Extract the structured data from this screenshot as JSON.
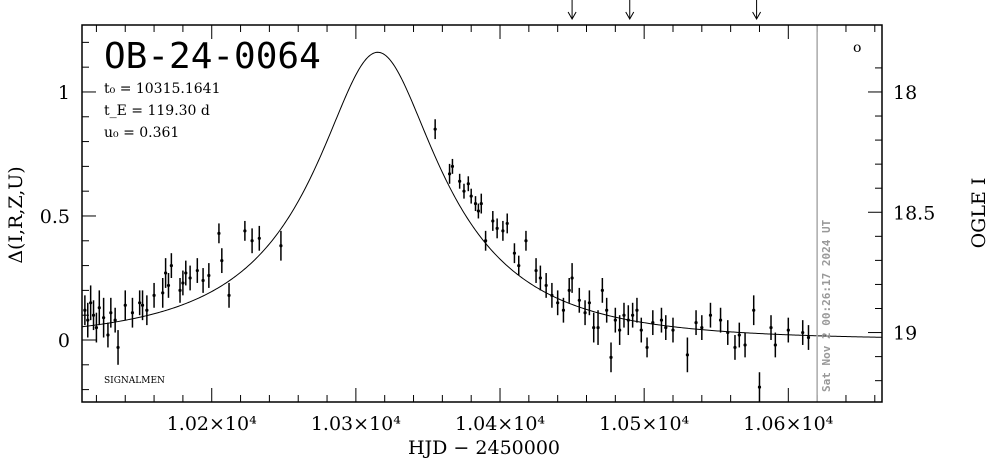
{
  "chart_data": {
    "type": "scatter",
    "title": "OB-24-0064",
    "params": [
      "t₀ = 10315.1641",
      "t_E = 119.30 d",
      "u₀ = 0.361"
    ],
    "xlabel": "HJD − 2450000",
    "ylabel": "Δ(I,R,Z,U)",
    "ylabel_right": "OGLE I",
    "xlim": [
      10110,
      10665
    ],
    "ylim": [
      -0.25,
      1.27
    ],
    "x_ticks": [
      10200,
      10300,
      10400,
      10500,
      10600
    ],
    "x_tick_labels": [
      "1.02×10⁴",
      "1.03×10⁴",
      "1.04×10⁴",
      "1.05×10⁴",
      "1.06×10⁴"
    ],
    "y_ticks": [
      0,
      0.5,
      1
    ],
    "y_tick_labels": [
      "0",
      "0.5",
      "1"
    ],
    "y_right_ticks": [
      18,
      18.5,
      19
    ],
    "y_right_tick_labels": [
      "18",
      "18.5",
      "19"
    ],
    "y_right_to_left": {
      "18": 1.0,
      "18.5": 0.5,
      "19": 0.03
    },
    "model": {
      "t0": 10315.1641,
      "tE": 119.3,
      "u0": 0.361,
      "baseline": 0.0,
      "scale": 0.4
    },
    "now_marker": {
      "x": 10620,
      "label": "Sat Nov  2 00:26:17 2024 UT"
    },
    "top_arrows_x": [
      10450,
      10490,
      10578
    ],
    "footer_label": "SIGNALMEN",
    "corner_mark": "o",
    "points": [
      {
        "x": 10112,
        "y": 0.12,
        "e": 0.06
      },
      {
        "x": 10114,
        "y": 0.08,
        "e": 0.07
      },
      {
        "x": 10116,
        "y": 0.15,
        "e": 0.07
      },
      {
        "x": 10118,
        "y": 0.1,
        "e": 0.06
      },
      {
        "x": 10120,
        "y": 0.05,
        "e": 0.06
      },
      {
        "x": 10122,
        "y": 0.13,
        "e": 0.07
      },
      {
        "x": 10125,
        "y": 0.09,
        "e": 0.08
      },
      {
        "x": 10128,
        "y": 0.02,
        "e": 0.05
      },
      {
        "x": 10130,
        "y": 0.11,
        "e": 0.06
      },
      {
        "x": 10133,
        "y": 0.08,
        "e": 0.05
      },
      {
        "x": 10135,
        "y": -0.03,
        "e": 0.07
      },
      {
        "x": 10140,
        "y": 0.14,
        "e": 0.06
      },
      {
        "x": 10145,
        "y": 0.11,
        "e": 0.06
      },
      {
        "x": 10150,
        "y": 0.15,
        "e": 0.05
      },
      {
        "x": 10152,
        "y": 0.14,
        "e": 0.06
      },
      {
        "x": 10155,
        "y": 0.12,
        "e": 0.06
      },
      {
        "x": 10160,
        "y": 0.18,
        "e": 0.05
      },
      {
        "x": 10166,
        "y": 0.19,
        "e": 0.06
      },
      {
        "x": 10168,
        "y": 0.27,
        "e": 0.06
      },
      {
        "x": 10170,
        "y": 0.22,
        "e": 0.05
      },
      {
        "x": 10172,
        "y": 0.3,
        "e": 0.05
      },
      {
        "x": 10178,
        "y": 0.2,
        "e": 0.05
      },
      {
        "x": 10180,
        "y": 0.23,
        "e": 0.05
      },
      {
        "x": 10182,
        "y": 0.27,
        "e": 0.05
      },
      {
        "x": 10185,
        "y": 0.25,
        "e": 0.05
      },
      {
        "x": 10190,
        "y": 0.28,
        "e": 0.05
      },
      {
        "x": 10194,
        "y": 0.24,
        "e": 0.05
      },
      {
        "x": 10198,
        "y": 0.26,
        "e": 0.05
      },
      {
        "x": 10205,
        "y": 0.43,
        "e": 0.04
      },
      {
        "x": 10207,
        "y": 0.32,
        "e": 0.05
      },
      {
        "x": 10212,
        "y": 0.18,
        "e": 0.05
      },
      {
        "x": 10223,
        "y": 0.44,
        "e": 0.04
      },
      {
        "x": 10228,
        "y": 0.4,
        "e": 0.05
      },
      {
        "x": 10233,
        "y": 0.41,
        "e": 0.05
      },
      {
        "x": 10248,
        "y": 0.38,
        "e": 0.06
      },
      {
        "x": 10355,
        "y": 0.85,
        "e": 0.04
      },
      {
        "x": 10365,
        "y": 0.67,
        "e": 0.04
      },
      {
        "x": 10367,
        "y": 0.7,
        "e": 0.03
      },
      {
        "x": 10372,
        "y": 0.64,
        "e": 0.03
      },
      {
        "x": 10375,
        "y": 0.6,
        "e": 0.03
      },
      {
        "x": 10378,
        "y": 0.63,
        "e": 0.03
      },
      {
        "x": 10380,
        "y": 0.58,
        "e": 0.03
      },
      {
        "x": 10383,
        "y": 0.55,
        "e": 0.03
      },
      {
        "x": 10385,
        "y": 0.52,
        "e": 0.03
      },
      {
        "x": 10387,
        "y": 0.55,
        "e": 0.04
      },
      {
        "x": 10390,
        "y": 0.4,
        "e": 0.04
      },
      {
        "x": 10395,
        "y": 0.48,
        "e": 0.04
      },
      {
        "x": 10398,
        "y": 0.45,
        "e": 0.04
      },
      {
        "x": 10402,
        "y": 0.44,
        "e": 0.04
      },
      {
        "x": 10405,
        "y": 0.47,
        "e": 0.04
      },
      {
        "x": 10410,
        "y": 0.35,
        "e": 0.04
      },
      {
        "x": 10413,
        "y": 0.3,
        "e": 0.04
      },
      {
        "x": 10418,
        "y": 0.4,
        "e": 0.04
      },
      {
        "x": 10425,
        "y": 0.28,
        "e": 0.05
      },
      {
        "x": 10428,
        "y": 0.25,
        "e": 0.05
      },
      {
        "x": 10432,
        "y": 0.22,
        "e": 0.05
      },
      {
        "x": 10436,
        "y": 0.18,
        "e": 0.05
      },
      {
        "x": 10440,
        "y": 0.15,
        "e": 0.05
      },
      {
        "x": 10444,
        "y": 0.12,
        "e": 0.05
      },
      {
        "x": 10448,
        "y": 0.2,
        "e": 0.05
      },
      {
        "x": 10450,
        "y": 0.25,
        "e": 0.06
      },
      {
        "x": 10455,
        "y": 0.16,
        "e": 0.05
      },
      {
        "x": 10459,
        "y": 0.11,
        "e": 0.05
      },
      {
        "x": 10462,
        "y": 0.15,
        "e": 0.05
      },
      {
        "x": 10465,
        "y": 0.05,
        "e": 0.06
      },
      {
        "x": 10468,
        "y": 0.05,
        "e": 0.07
      },
      {
        "x": 10471,
        "y": 0.2,
        "e": 0.05
      },
      {
        "x": 10474,
        "y": 0.12,
        "e": 0.05
      },
      {
        "x": 10477,
        "y": -0.07,
        "e": 0.06
      },
      {
        "x": 10480,
        "y": 0.08,
        "e": 0.05
      },
      {
        "x": 10483,
        "y": 0.04,
        "e": 0.06
      },
      {
        "x": 10486,
        "y": 0.1,
        "e": 0.05
      },
      {
        "x": 10489,
        "y": 0.08,
        "e": 0.06
      },
      {
        "x": 10492,
        "y": 0.1,
        "e": 0.05
      },
      {
        "x": 10495,
        "y": 0.12,
        "e": 0.05
      },
      {
        "x": 10498,
        "y": 0.04,
        "e": 0.05
      },
      {
        "x": 10502,
        "y": -0.03,
        "e": 0.04
      },
      {
        "x": 10506,
        "y": 0.07,
        "e": 0.05
      },
      {
        "x": 10512,
        "y": 0.08,
        "e": 0.05
      },
      {
        "x": 10515,
        "y": 0.05,
        "e": 0.05
      },
      {
        "x": 10520,
        "y": 0.04,
        "e": 0.05
      },
      {
        "x": 10530,
        "y": -0.06,
        "e": 0.07
      },
      {
        "x": 10536,
        "y": 0.07,
        "e": 0.05
      },
      {
        "x": 10540,
        "y": 0.05,
        "e": 0.05
      },
      {
        "x": 10546,
        "y": 0.1,
        "e": 0.05
      },
      {
        "x": 10553,
        "y": 0.08,
        "e": 0.05
      },
      {
        "x": 10558,
        "y": 0.03,
        "e": 0.05
      },
      {
        "x": 10563,
        "y": -0.03,
        "e": 0.05
      },
      {
        "x": 10566,
        "y": 0.02,
        "e": 0.05
      },
      {
        "x": 10570,
        "y": -0.02,
        "e": 0.05
      },
      {
        "x": 10576,
        "y": 0.12,
        "e": 0.06
      },
      {
        "x": 10580,
        "y": -0.19,
        "e": 0.06
      },
      {
        "x": 10588,
        "y": 0.05,
        "e": 0.05
      },
      {
        "x": 10591,
        "y": -0.02,
        "e": 0.05
      },
      {
        "x": 10600,
        "y": 0.04,
        "e": 0.05
      },
      {
        "x": 10610,
        "y": 0.03,
        "e": 0.05
      },
      {
        "x": 10614,
        "y": 0.01,
        "e": 0.05
      }
    ]
  }
}
